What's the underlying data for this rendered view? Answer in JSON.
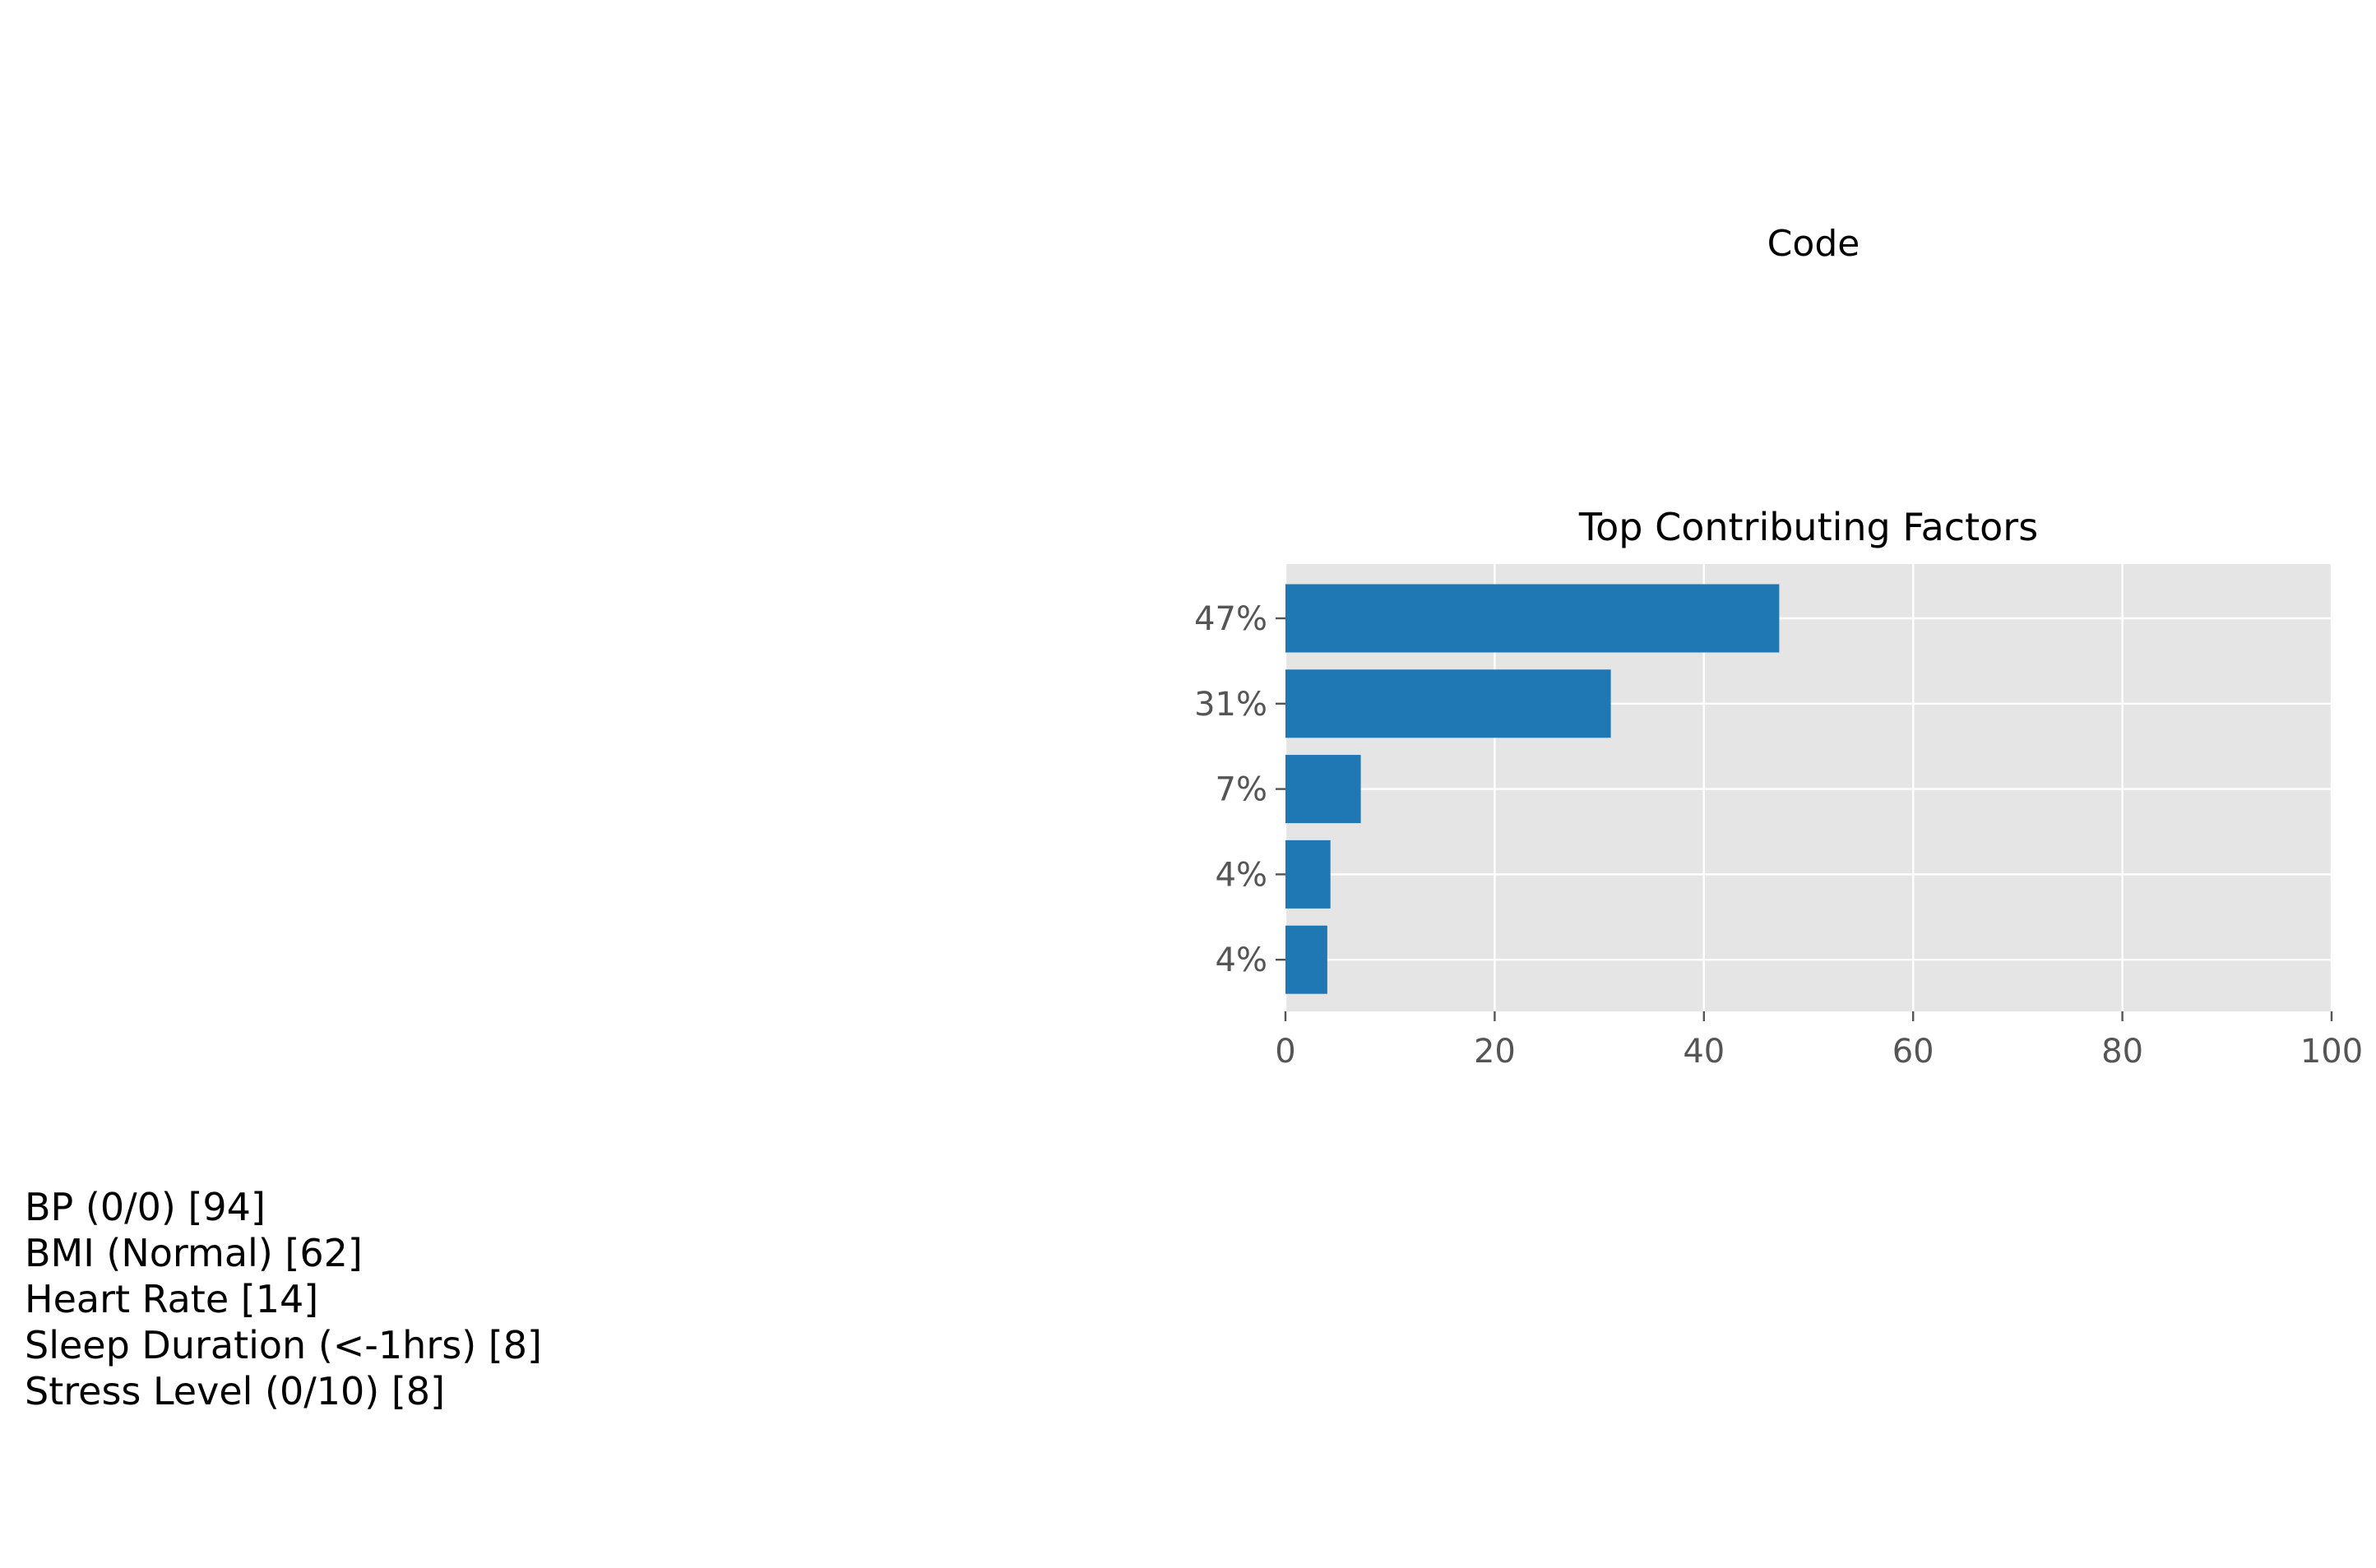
{
  "header": {
    "label": "Code"
  },
  "chart_data": {
    "type": "bar",
    "orientation": "horizontal",
    "title": "Top Contributing Factors",
    "xlabel": "",
    "ylabel": "",
    "categories": [
      "47%",
      "31%",
      "7%",
      "4%",
      "4%"
    ],
    "values": [
      47.2,
      31.1,
      7.2,
      4.3,
      4.0
    ],
    "xlim": [
      0,
      100
    ],
    "xticks": [
      "0",
      "20",
      "40",
      "60",
      "80",
      "100"
    ],
    "grid": true,
    "bar_color": "#1f77b4",
    "background_color": "#e5e5e5"
  },
  "factors": [
    "BP (0/0) [94]",
    "BMI (Normal) [62]",
    "Heart Rate [14]",
    "Sleep Duration (<-1hrs) [8]",
    "Stress Level (0/10) [8]"
  ]
}
